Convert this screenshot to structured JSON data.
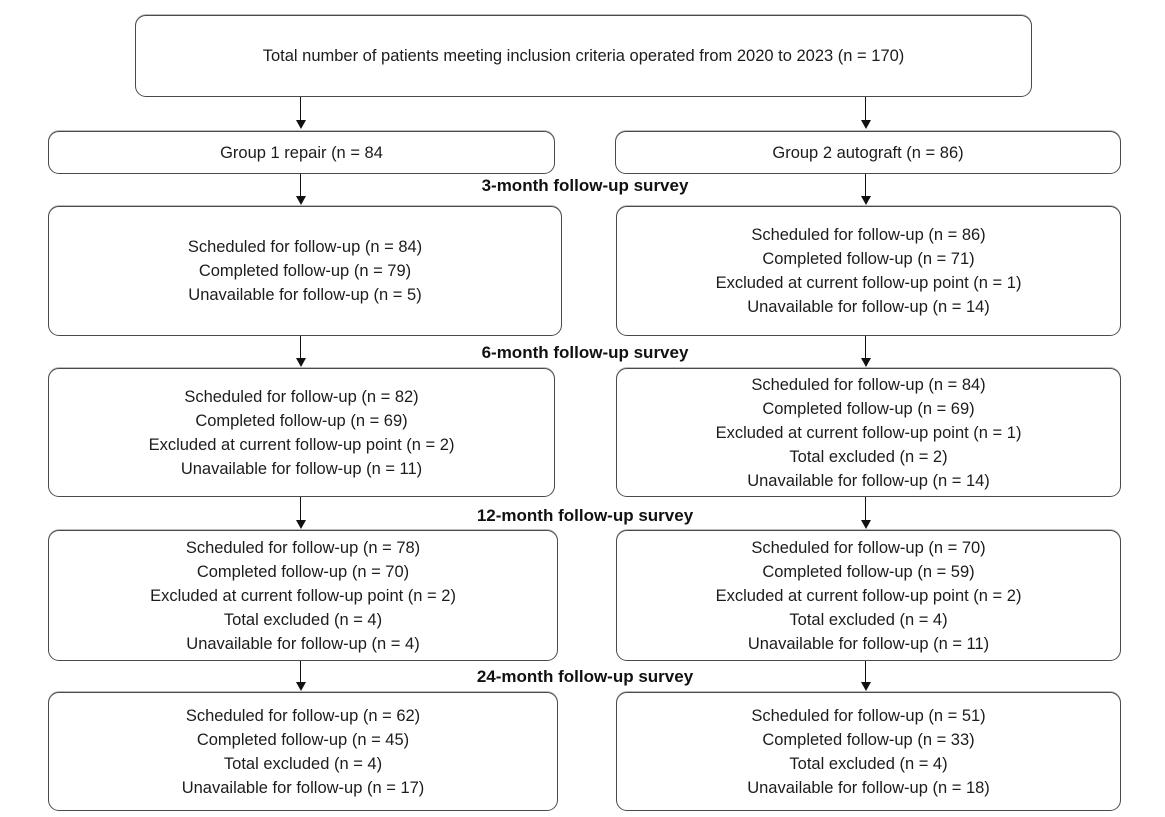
{
  "title_box": {
    "text": "Total number of patients meeting inclusion criteria operated from 2020 to 2023 (n = 170)"
  },
  "groups": {
    "group1": {
      "label": "Group 1 repair (n = 84"
    },
    "group2": {
      "label": "Group 2 autograft (n = 86)"
    }
  },
  "stages": [
    {
      "label": "3-month follow-up survey",
      "left": [
        "Scheduled for follow-up (n = 84)",
        "Completed follow-up (n = 79)",
        "Unavailable for follow-up (n = 5)"
      ],
      "right": [
        "Scheduled for follow-up (n = 86)",
        "Completed follow-up (n = 71)",
        "Excluded at current follow-up point (n = 1)",
        "Unavailable for follow-up (n = 14)"
      ]
    },
    {
      "label": "6-month follow-up survey",
      "left": [
        "Scheduled for follow-up (n = 82)",
        "Completed follow-up (n = 69)",
        "Excluded at current follow-up point (n = 2)",
        "Unavailable for follow-up (n = 11)"
      ],
      "right": [
        "Scheduled for follow-up (n = 84)",
        "Completed follow-up (n = 69)",
        "Excluded at current follow-up point (n = 1)",
        "Total excluded (n = 2)",
        "Unavailable for follow-up (n = 14)"
      ]
    },
    {
      "label": "12-month follow-up survey",
      "left": [
        "Scheduled for follow-up (n = 78)",
        "Completed follow-up (n = 70)",
        "Excluded at current follow-up point (n = 2)",
        "Total excluded (n = 4)",
        "Unavailable for follow-up (n = 4)"
      ],
      "right": [
        "Scheduled for follow-up (n = 70)",
        "Completed follow-up (n = 59)",
        "Excluded at current follow-up point (n = 2)",
        "Total excluded (n = 4)",
        "Unavailable for follow-up (n = 11)"
      ]
    },
    {
      "label": "24-month follow-up survey",
      "left": [
        "Scheduled for follow-up (n = 62)",
        "Completed follow-up (n = 45)",
        "Total excluded (n = 4)",
        "Unavailable for follow-up (n = 17)"
      ],
      "right": [
        "Scheduled for follow-up (n = 51)",
        "Completed follow-up (n = 33)",
        "Total excluded (n = 4)",
        "Unavailable for follow-up (n = 18)"
      ]
    }
  ],
  "colors": {
    "border": "#4a4a4a",
    "text": "#1c1c1c",
    "background": "#ffffff"
  }
}
